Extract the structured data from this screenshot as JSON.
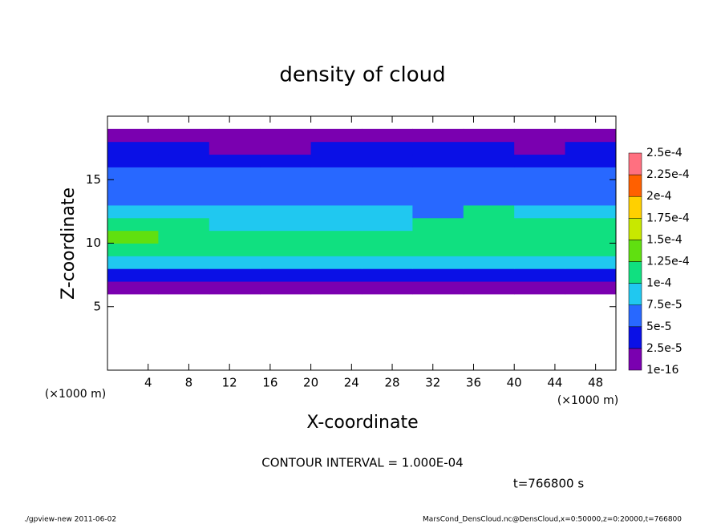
{
  "chart_data": {
    "type": "heatmap",
    "title": "density of cloud",
    "xlabel": "X-coordinate",
    "ylabel": "Z-coordinate",
    "x_unit": "(×1000 m)",
    "y_unit": "(×1000 m)",
    "contour_note": "CONTOUR INTERVAL = 1.000E-04",
    "time_note": "t=766800 s",
    "footer_left": "./gpview-new  2011-06-02",
    "footer_right": "MarsCond_DensCloud.nc@DensCloud,x=0:50000,z=0:20000,t=766800",
    "xlim": [
      0,
      50
    ],
    "ylim": [
      0,
      20
    ],
    "xticks": [
      4,
      8,
      12,
      16,
      20,
      24,
      28,
      32,
      36,
      40,
      44,
      48
    ],
    "yticks": [
      5,
      10,
      15
    ],
    "xbins": [
      0,
      5,
      10,
      15,
      20,
      25,
      30,
      35,
      40,
      45,
      50
    ],
    "zbins": [
      6,
      7,
      8,
      9,
      10,
      11,
      12,
      13,
      14,
      15,
      16,
      17,
      18,
      19
    ],
    "values": [
      [
        1.2e-05,
        1.2e-05,
        1.2e-05,
        1.2e-05,
        1.2e-05,
        1.2e-05,
        1.2e-05,
        1.2e-05,
        1.2e-05,
        1.2e-05
      ],
      [
        3.5e-05,
        3.5e-05,
        3.5e-05,
        3.5e-05,
        3.5e-05,
        3.5e-05,
        3.5e-05,
        4e-05,
        3.5e-05,
        3.5e-05
      ],
      [
        8.2e-05,
        8.5e-05,
        8.8e-05,
        8.6e-05,
        8.4e-05,
        8.8e-05,
        8.5e-05,
        8e-05,
        9e-05,
        9.2e-05
      ],
      [
        0.00011,
        0.000115,
        0.00011,
        0.000108,
        0.000105,
        0.00011,
        0.000105,
        0.0001,
        0.00011,
        0.000112
      ],
      [
        0.000128,
        0.000122,
        0.000115,
        0.000112,
        0.00011,
        0.000108,
        0.00011,
        0.000112,
        0.000115,
        0.000118
      ],
      [
        0.000105,
        0.0001,
        9.5e-05,
        9.2e-05,
        9.5e-05,
        9e-05,
        0.000102,
        0.000112,
        0.000105,
        0.0001
      ],
      [
        8.2e-05,
        8e-05,
        8e-05,
        7.8e-05,
        7.8e-05,
        7.6e-05,
        7e-05,
        0.000102,
        8.5e-05,
        8.2e-05
      ],
      [
        6.8e-05,
        7e-05,
        7.2e-05,
        6.8e-05,
        6.6e-05,
        6.5e-05,
        6.4e-05,
        7e-05,
        6.8e-05,
        6.6e-05
      ],
      [
        6e-05,
        6.2e-05,
        6e-05,
        5.8e-05,
        6e-05,
        5.6e-05,
        5.5e-05,
        5.4e-05,
        5.6e-05,
        5.8e-05
      ],
      [
        5.8e-05,
        5.6e-05,
        5.8e-05,
        5.5e-05,
        5.4e-05,
        5.2e-05,
        5.3e-05,
        5.2e-05,
        5.4e-05,
        5.5e-05
      ],
      [
        4e-05,
        4.2e-05,
        4e-05,
        4.1e-05,
        4e-05,
        3.8e-05,
        3.8e-05,
        3.9e-05,
        4e-05,
        4.1e-05
      ],
      [
        3e-05,
        2.8e-05,
        2.2e-05,
        2.2e-05,
        2.6e-05,
        2.8e-05,
        3e-05,
        2.6e-05,
        2.4e-05,
        2.8e-05
      ],
      [
        1e-05,
        1e-05,
        1e-05,
        1e-05,
        1e-05,
        1e-05,
        1e-05,
        1e-05,
        1e-05,
        1e-05
      ]
    ],
    "levels": [
      {
        "value": 1e-16,
        "label": "1e-16"
      },
      {
        "value": 2.5e-05,
        "label": "2.5e-5"
      },
      {
        "value": 5e-05,
        "label": "5e-5"
      },
      {
        "value": 7.5e-05,
        "label": "7.5e-5"
      },
      {
        "value": 0.0001,
        "label": "1e-4"
      },
      {
        "value": 0.000125,
        "label": "1.25e-4"
      },
      {
        "value": 0.00015,
        "label": "1.5e-4"
      },
      {
        "value": 0.000175,
        "label": "1.75e-4"
      },
      {
        "value": 0.0002,
        "label": "2e-4"
      },
      {
        "value": 0.000225,
        "label": "2.25e-4"
      },
      {
        "value": 0.00025,
        "label": "2.5e-4"
      }
    ],
    "colors": [
      "#7a00b0",
      "#0a10e6",
      "#2868ff",
      "#20c8f0",
      "#10e080",
      "#60e010",
      "#c8e800",
      "#ffd000",
      "#ff6000",
      "#ff7080"
    ]
  }
}
